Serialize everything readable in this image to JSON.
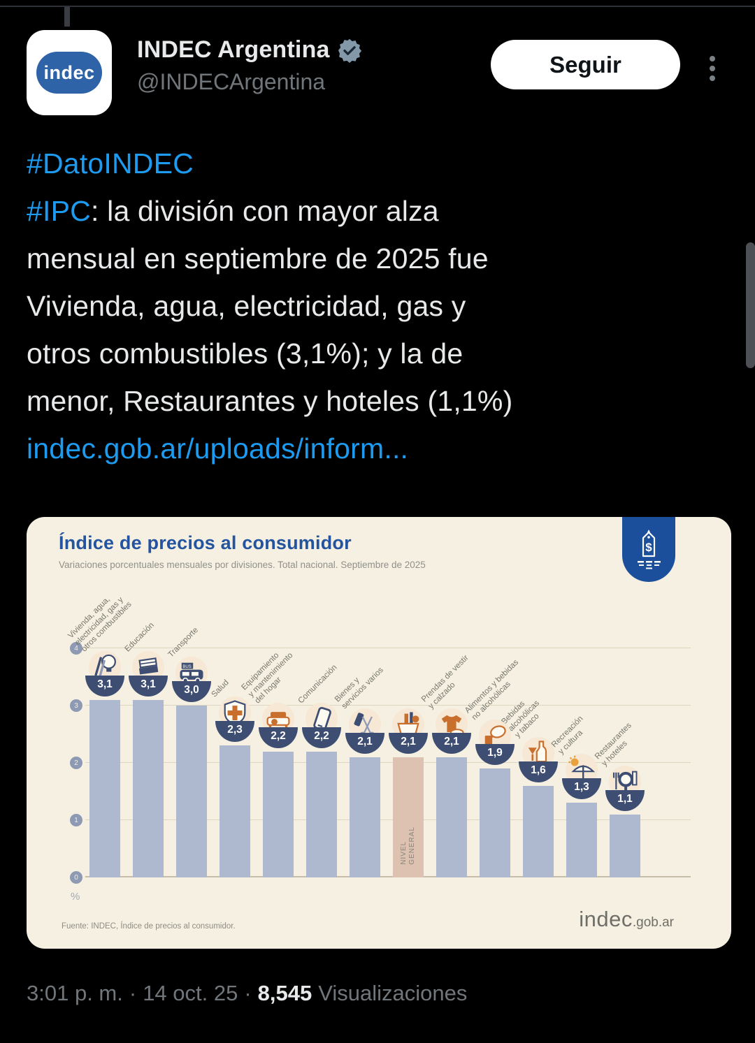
{
  "tweet": {
    "author": {
      "name": "INDEC Argentina",
      "handle": "@INDECArgentina",
      "avatar_text": "indec",
      "verified_badge": "gray-government-check"
    },
    "follow_button_label": "Seguir",
    "more_menu_icon": "kebab-vertical",
    "body_lines": [
      [
        {
          "text": "#DatoINDEC",
          "link": true
        }
      ],
      [
        {
          "text": "#IPC",
          "link": true
        },
        {
          "text": ": la división con mayor alza",
          "link": false
        }
      ],
      [
        {
          "text": "mensual en septiembre de 2025 fue",
          "link": false
        }
      ],
      [
        {
          "text": "Vivienda, agua, electricidad, gas y",
          "link": false
        }
      ],
      [
        {
          "text": "otros combustibles (3,1%); y la de",
          "link": false
        }
      ],
      [
        {
          "text": "menor, Restaurantes y hoteles (1,1%)",
          "link": false
        }
      ],
      [
        {
          "text": "indec.gob.ar/uploads/inform...",
          "link": true
        }
      ]
    ],
    "footer": {
      "time": "3:01 p. m.",
      "separator": "·",
      "date": "14 oct. 25",
      "views_count": "8,545",
      "views_label": "Visualizaciones"
    }
  },
  "chart_card": {
    "badge_icon": "price-tag",
    "source": "Fuente: INDEC, Índice de precios al consumidor.",
    "brand_main": "indec",
    "brand_suffix": ".gob.ar"
  },
  "chart_data": {
    "type": "bar",
    "title": "Índice de precios al consumidor",
    "subtitle": "Variaciones porcentuales mensuales por divisiones. Total nacional. Septiembre de 2025",
    "xlabel": "",
    "ylabel": "%",
    "ylim": [
      0,
      4
    ],
    "yticks": [
      0,
      1,
      2,
      3,
      4
    ],
    "grid": true,
    "legend": "none",
    "categories": [
      "Vivienda, agua, electricidad, gas y otros combustibles",
      "Educación",
      "Transporte",
      "Salud",
      "Equipamiento y mantenimiento del hogar",
      "Comunicación",
      "Bienes y servicios varios",
      "Nivel general",
      "Prendas de vestir y calzado",
      "Alimentos y bebidas no alcohólicas",
      "Bebidas alcohólicas y tabaco",
      "Recreación y cultura",
      "Restaurantes y hoteles"
    ],
    "values": [
      3.1,
      3.1,
      3.0,
      2.3,
      2.2,
      2.2,
      2.1,
      2.1,
      2.1,
      1.9,
      1.6,
      1.3,
      1.1
    ],
    "value_labels": [
      "3,1",
      "3,1",
      "3,0",
      "2,3",
      "2,2",
      "2,2",
      "2,1",
      "2,1",
      "2,1",
      "1,9",
      "1,6",
      "1,3",
      "1,1"
    ],
    "label_lines": [
      [
        "Vivienda, agua,",
        "electricidad, gas y",
        "otros combustibles"
      ],
      [
        "Educación"
      ],
      [
        "Transporte"
      ],
      [
        "Salud"
      ],
      [
        "Equipamiento",
        "y mantenimiento",
        "del hogar"
      ],
      [
        "Comunicación"
      ],
      [
        "Bienes y",
        "servicios varios"
      ],
      [],
      [
        "Prendas de vestir",
        "y calzado"
      ],
      [
        "Alimentos y bebidas",
        "no alcohólicas"
      ],
      [
        "Bebidas",
        "alcohólicas",
        "y tabaco"
      ],
      [
        "Recreación",
        "y cultura"
      ],
      [
        "Restaurantes",
        "y hoteles"
      ]
    ],
    "highlight_index": 7,
    "highlight_bar_label": [
      "NIVEL",
      "GENERAL"
    ],
    "bar_color": "#aeb9cf",
    "highlight_color": "#ddc2b1",
    "bowl_color": "#3e4e72",
    "icons": [
      "housing-utilities-icon",
      "education-icon",
      "transport-icon",
      "health-icon",
      "home-equipment-icon",
      "communication-icon",
      "misc-goods-icon",
      "grocery-basket-icon",
      "clothing-icon",
      "food-icon",
      "alcohol-icon",
      "recreation-icon",
      "restaurants-icon"
    ]
  }
}
